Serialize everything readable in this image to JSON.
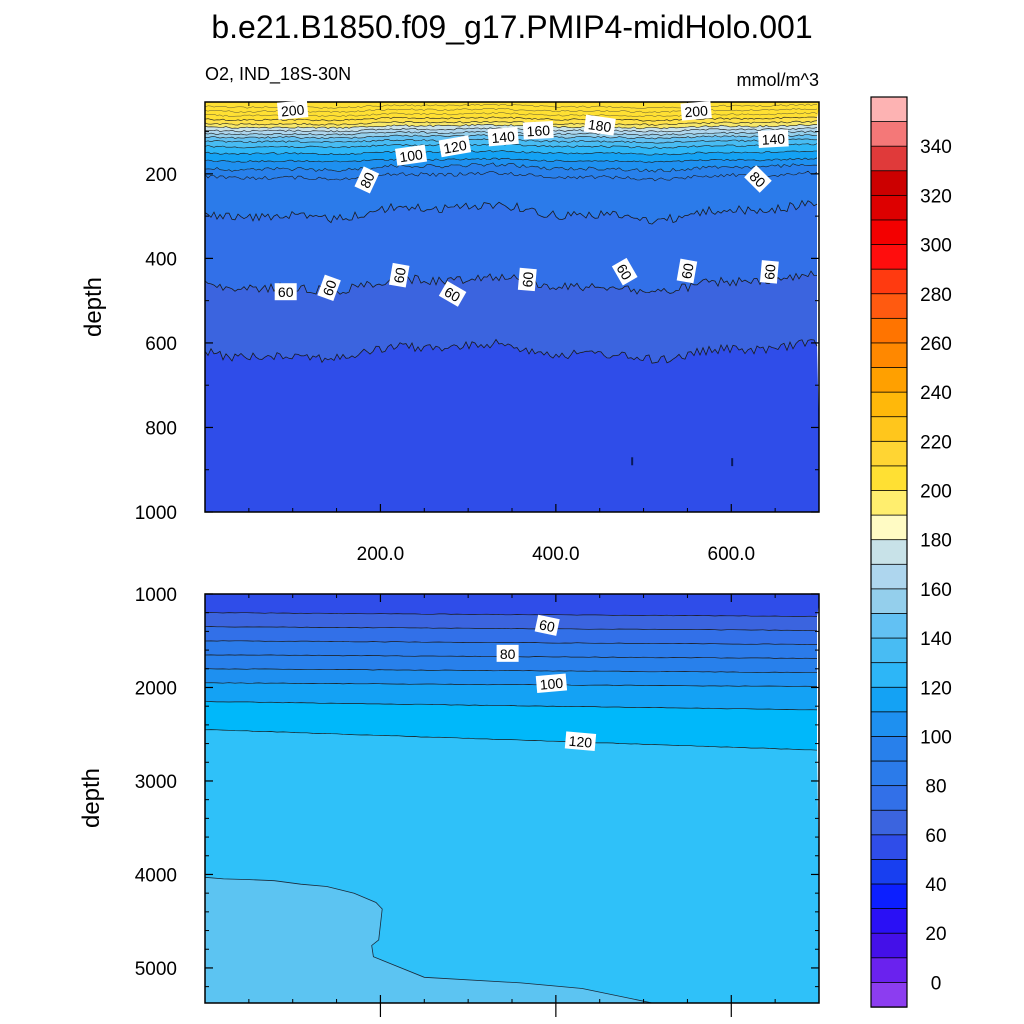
{
  "figure_title": "b.e21.B1850.f09_g17.PMIP4-midHolo.001",
  "chart_data": [
    {
      "type": "contour",
      "panel": "upper",
      "title_left": "O2, IND_18S-30N",
      "title_right": "mmol/m^3",
      "ylabel": "depth",
      "ylim": [
        1000,
        30
      ],
      "xlim": [
        0,
        700
      ],
      "yticks": [
        200,
        400,
        600,
        800,
        1000
      ],
      "ytick_labels": [
        "200",
        "400",
        "600",
        "800",
        "1000"
      ],
      "xticks": [
        200,
        400,
        600
      ],
      "xtick_labels": [
        "200.0",
        "400.0",
        "600.0"
      ],
      "bands": [
        {
          "from": 30,
          "to": 70,
          "value": 205,
          "color": "#FFE033"
        },
        {
          "from": 70,
          "to": 80,
          "value": 195,
          "color": "#FFE24A"
        },
        {
          "from": 80,
          "to": 88,
          "value": 185,
          "color": "#F7E86A"
        },
        {
          "from": 88,
          "to": 96,
          "value": 175,
          "color": "#C8E2E8"
        },
        {
          "from": 96,
          "to": 104,
          "value": 165,
          "color": "#AED6EE"
        },
        {
          "from": 104,
          "to": 112,
          "value": 155,
          "color": "#94CFEC"
        },
        {
          "from": 112,
          "to": 122,
          "value": 145,
          "color": "#62C1F3"
        },
        {
          "from": 122,
          "to": 134,
          "value": 135,
          "color": "#48BCF3"
        },
        {
          "from": 134,
          "to": 150,
          "value": 125,
          "color": "#2DB6F7"
        },
        {
          "from": 150,
          "to": 168,
          "value": 115,
          "color": "#14A2F4"
        },
        {
          "from": 168,
          "to": 185,
          "value": 105,
          "color": "#1E90F0"
        },
        {
          "from": 185,
          "to": 205,
          "value": 95,
          "color": "#2880EB"
        },
        {
          "from": 205,
          "to": 290,
          "value": 80,
          "color": "#2B7BEA"
        },
        {
          "from": 290,
          "to": 460,
          "value": 70,
          "color": "#3270E8"
        },
        {
          "from": 460,
          "to": 620,
          "value": 60,
          "color": "#3B64DF"
        },
        {
          "from": 620,
          "to": 1000,
          "value": 50,
          "color": "#2F4DE9"
        }
      ],
      "contour_levels": [
        {
          "depth": 60,
          "label": null
        },
        {
          "depth": 70,
          "label": "200"
        },
        {
          "depth": 80,
          "label": null
        },
        {
          "depth": 88,
          "label": "180"
        },
        {
          "depth": 96,
          "label": null
        },
        {
          "depth": 104,
          "label": "160"
        },
        {
          "depth": 112,
          "label": null
        },
        {
          "depth": 122,
          "label": "140"
        },
        {
          "depth": 134,
          "label": null
        },
        {
          "depth": 150,
          "label": "120"
        },
        {
          "depth": 168,
          "label": null
        },
        {
          "depth": 185,
          "label": "100"
        },
        {
          "depth": 205,
          "label": "80"
        },
        {
          "depth": 290,
          "label": null
        },
        {
          "depth": 460,
          "label": "60"
        },
        {
          "depth": 620,
          "label": null
        }
      ],
      "contour_labels": [
        {
          "text": "200",
          "x": 100,
          "y": 50,
          "angle": -5
        },
        {
          "text": "200",
          "x": 560,
          "y": 52,
          "angle": -5
        },
        {
          "text": "180",
          "x": 450,
          "y": 86,
          "angle": 8
        },
        {
          "text": "160",
          "x": 380,
          "y": 98,
          "angle": -3
        },
        {
          "text": "140",
          "x": 340,
          "y": 113,
          "angle": -5
        },
        {
          "text": "140",
          "x": 648,
          "y": 118,
          "angle": -3
        },
        {
          "text": "120",
          "x": 285,
          "y": 136,
          "angle": -10
        },
        {
          "text": "100",
          "x": 235,
          "y": 157,
          "angle": -8
        },
        {
          "text": "80",
          "x": 185,
          "y": 215,
          "angle": -65
        },
        {
          "text": "80",
          "x": 630,
          "y": 213,
          "angle": 45
        },
        {
          "text": "60",
          "x": 92,
          "y": 480,
          "angle": 0
        },
        {
          "text": "60",
          "x": 142,
          "y": 470,
          "angle": -70
        },
        {
          "text": "60",
          "x": 222,
          "y": 440,
          "angle": -80
        },
        {
          "text": "60",
          "x": 282,
          "y": 485,
          "angle": 30
        },
        {
          "text": "60",
          "x": 368,
          "y": 450,
          "angle": -85
        },
        {
          "text": "60",
          "x": 478,
          "y": 432,
          "angle": 60
        },
        {
          "text": "60",
          "x": 550,
          "y": 430,
          "angle": -80
        },
        {
          "text": "60",
          "x": 644,
          "y": 432,
          "angle": -85
        }
      ],
      "small_features": [
        {
          "x": 487,
          "y": 880
        },
        {
          "x": 601,
          "y": 882
        }
      ]
    },
    {
      "type": "contour",
      "panel": "lower",
      "ylabel": "depth",
      "ylim": [
        5375,
        1000
      ],
      "xlim": [
        0,
        700
      ],
      "yticks": [
        1000,
        2000,
        3000,
        4000,
        5000
      ],
      "ytick_labels": [
        "1000",
        "2000",
        "3000",
        "4000",
        "5000"
      ],
      "bands": [
        {
          "from": 1000,
          "to": 1200,
          "value": 45,
          "color": "#2F4DE9"
        },
        {
          "from": 1200,
          "to": 1350,
          "value": 55,
          "color": "#3B64DF"
        },
        {
          "from": 1350,
          "to": 1500,
          "value": 65,
          "color": "#3270E8"
        },
        {
          "from": 1500,
          "to": 1650,
          "value": 75,
          "color": "#2B7BEA"
        },
        {
          "from": 1650,
          "to": 1800,
          "value": 85,
          "color": "#2880EB"
        },
        {
          "from": 1800,
          "to": 1950,
          "value": 95,
          "color": "#1E90F0"
        },
        {
          "from": 1950,
          "to": 2150,
          "value": 105,
          "color": "#14A2F4"
        },
        {
          "from": 2150,
          "to": 2450,
          "value": 115,
          "color": "#00B8FA"
        },
        {
          "from": 2450,
          "to": 5375,
          "value": 125,
          "color": "#2FC1F9"
        }
      ],
      "contour_labels": [
        {
          "text": "60",
          "x": 390,
          "y": 1340,
          "angle": 12
        },
        {
          "text": "80",
          "x": 345,
          "y": 1640,
          "angle": 0
        },
        {
          "text": "100",
          "x": 395,
          "y": 1960,
          "angle": -5
        },
        {
          "text": "120",
          "x": 428,
          "y": 2580,
          "angle": 5
        }
      ],
      "low_region": {
        "value": 135,
        "color": "#5CC4F2"
      }
    }
  ],
  "colorbar": {
    "label_values": [
      "340",
      "320",
      "300",
      "280",
      "260",
      "240",
      "220",
      "200",
      "180",
      "160",
      "140",
      "120",
      "100",
      "80",
      "60",
      "40",
      "20",
      "0"
    ],
    "colors": [
      "#FDB3B3",
      "#F47878",
      "#E03A3A",
      "#CC0000",
      "#DD0000",
      "#F30000",
      "#FF0D0D",
      "#FF3A10",
      "#FF5A10",
      "#FF7400",
      "#FF8800",
      "#FFA000",
      "#FFB80A",
      "#FFC61C",
      "#FFD533",
      "#FFE033",
      "#FFEE6E",
      "#FFFBC4",
      "#C8E2E8",
      "#AED6EE",
      "#94CFEC",
      "#62C1F3",
      "#48BCF3",
      "#2DB6F7",
      "#14A2F4",
      "#1E90F0",
      "#2880EB",
      "#2B7BEA",
      "#3270E8",
      "#3B64DF",
      "#2F4DE9",
      "#183FF0",
      "#0C1FFF",
      "#2A10F5",
      "#4410E8",
      "#6A22EE",
      "#8C3DF0"
    ]
  }
}
